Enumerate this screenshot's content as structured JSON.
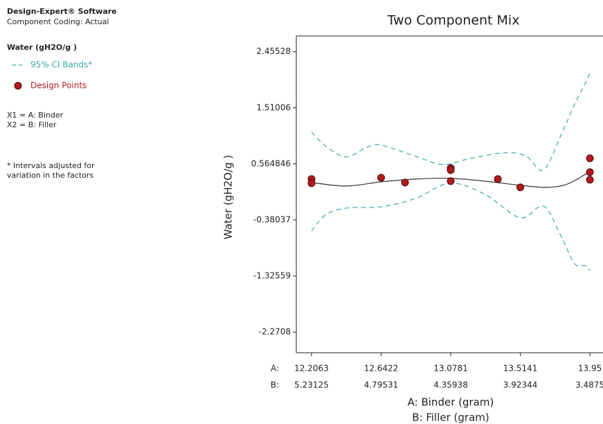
{
  "header": {
    "software": "Design-Expert® Software",
    "coding": "Component Coding: Actual",
    "response": "Water (gH2O/g )",
    "x1": "X1 = A: Binder",
    "x2": "X2 = B: Filler",
    "note": [
      "* Intervals adjusted for",
      "variation in the factors"
    ]
  },
  "chart_data": {
    "type": "mix",
    "title": "Two Component Mix",
    "y_label": "Water (gH2O/g )",
    "x_label": "A: Binder (gram)",
    "x2_label": "B: Filler (gram)",
    "a_prefix": "A:",
    "b_prefix": "B:",
    "xlim": [
      12.111,
      14.045
    ],
    "ylim": [
      -2.62,
      2.72
    ],
    "xticks": [
      12.2063,
      12.6422,
      13.0781,
      13.5141,
      13.95
    ],
    "xticks_b": [
      5.23125,
      4.79531,
      4.35938,
      3.92344,
      3.4875
    ],
    "yticks": [
      2.45528,
      1.51006,
      0.564846,
      -0.38037,
      -1.32559,
      -2.2708
    ],
    "series": [
      {
        "kind": "line",
        "color": "#333333",
        "x": [
          12.2063,
          12.423,
          12.6422,
          12.857,
          13.0781,
          13.291,
          13.5141,
          13.681,
          13.811,
          13.95
        ],
        "values": [
          0.25,
          0.191,
          0.261,
          0.308,
          0.32,
          0.273,
          0.203,
          0.168,
          0.226,
          0.436
        ]
      },
      {
        "kind": "band",
        "name": "95% CI Bands*",
        "color": "#3aa8a8",
        "x": [
          12.2063,
          12.293,
          12.423,
          12.553,
          12.6422,
          12.857,
          13.03,
          13.204,
          13.421,
          13.551,
          13.659,
          13.768,
          13.854,
          13.92,
          13.95
        ],
        "values": [
          1.102,
          0.868,
          0.682,
          0.845,
          0.88,
          0.693,
          0.553,
          0.658,
          0.752,
          0.693,
          0.46,
          1.043,
          1.568,
          1.918,
          2.093
        ]
      },
      {
        "kind": "band",
        "color": "#3aa8a8",
        "x": [
          12.2063,
          12.293,
          12.423,
          12.6422,
          12.857,
          13.074,
          13.291,
          13.5141,
          13.659,
          13.768,
          13.854,
          13.92,
          13.95
        ],
        "values": [
          -0.567,
          -0.299,
          -0.182,
          -0.159,
          -0.019,
          0.238,
          0.051,
          -0.345,
          -0.147,
          -0.649,
          -1.116,
          -1.151,
          -1.232
        ]
      },
      {
        "kind": "points",
        "name": "Design Points",
        "color": "#b3191f",
        "x": [
          12.2063,
          12.2063,
          12.6422,
          12.792,
          13.0781,
          13.0781,
          13.0781,
          13.373,
          13.5141,
          13.95,
          13.95,
          13.95
        ],
        "values": [
          0.308,
          0.238,
          0.331,
          0.25,
          0.495,
          0.46,
          0.273,
          0.308,
          0.168,
          0.658,
          0.425,
          0.296
        ]
      }
    ]
  }
}
